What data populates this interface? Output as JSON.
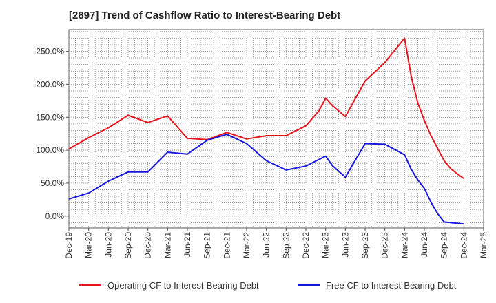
{
  "chart_data": {
    "type": "line",
    "title": "[2897]  Trend of Cashflow Ratio to Interest-Bearing Debt",
    "xlabel": "",
    "ylabel": "",
    "x_ticks": [
      "Dec-19",
      "Mar-20",
      "Jun-20",
      "Sep-20",
      "Dec-20",
      "Mar-21",
      "Jun-21",
      "Sep-21",
      "Dec-21",
      "Mar-22",
      "Jun-22",
      "Sep-22",
      "Dec-22",
      "Mar-23",
      "Jun-23",
      "Sep-23",
      "Dec-23",
      "Mar-24",
      "Jun-24",
      "Sep-24",
      "Dec-24",
      "Mar-25"
    ],
    "y_ticks": [
      "0.0%",
      "50.0%",
      "100.0%",
      "150.0%",
      "200.0%",
      "250.0%"
    ],
    "ylim": [
      -18,
      283
    ],
    "grid": true,
    "legend_position": "bottom",
    "series": [
      {
        "name": "Operating CF to Interest-Bearing Debt",
        "color": "#e8141c",
        "points": [
          [
            "Dec-19",
            102
          ],
          [
            "Mar-20",
            119
          ],
          [
            "Jun-20",
            134
          ],
          [
            "Sep-20",
            153
          ],
          [
            "Dec-20",
            142
          ],
          [
            "Mar-21",
            152
          ],
          [
            "Jun-21",
            118
          ],
          [
            "Sep-21",
            116
          ],
          [
            "Dec-21",
            127
          ],
          [
            "Mar-22",
            117
          ],
          [
            "Jun-22",
            122
          ],
          [
            "Sep-22",
            122
          ],
          [
            "Dec-22",
            137
          ],
          [
            "Feb-23",
            160
          ],
          [
            "Mar-23",
            179
          ],
          [
            "Apr-23",
            168
          ],
          [
            "Jun-23",
            151
          ],
          [
            "Sep-23",
            205
          ],
          [
            "Dec-23",
            233
          ],
          [
            "Mar-24",
            270
          ],
          [
            "Apr-24",
            212
          ],
          [
            "May-24",
            172
          ],
          [
            "Jun-24",
            145
          ],
          [
            "Jul-24",
            122
          ],
          [
            "Aug-24",
            103
          ],
          [
            "Sep-24",
            84
          ],
          [
            "Oct-24",
            72
          ],
          [
            "Nov-24",
            64
          ],
          [
            "Dec-24",
            57
          ]
        ]
      },
      {
        "name": "Free CF to Interest-Bearing Debt",
        "color": "#1616e0",
        "points": [
          [
            "Dec-19",
            26
          ],
          [
            "Mar-20",
            35
          ],
          [
            "Jun-20",
            53
          ],
          [
            "Sep-20",
            67
          ],
          [
            "Dec-20",
            67
          ],
          [
            "Mar-21",
            97
          ],
          [
            "Jun-21",
            94
          ],
          [
            "Sep-21",
            115
          ],
          [
            "Dec-21",
            124
          ],
          [
            "Mar-22",
            110
          ],
          [
            "Jun-22",
            84
          ],
          [
            "Sep-22",
            70
          ],
          [
            "Dec-22",
            76
          ],
          [
            "Mar-23",
            91
          ],
          [
            "Apr-23",
            77
          ],
          [
            "Jun-23",
            59
          ],
          [
            "Sep-23",
            110
          ],
          [
            "Dec-23",
            109
          ],
          [
            "Mar-24",
            93
          ],
          [
            "Apr-24",
            71
          ],
          [
            "May-24",
            55
          ],
          [
            "Jun-24",
            42
          ],
          [
            "Jul-24",
            21
          ],
          [
            "Aug-24",
            4
          ],
          [
            "Sep-24",
            -9
          ],
          [
            "Dec-24",
            -12
          ]
        ]
      }
    ]
  }
}
